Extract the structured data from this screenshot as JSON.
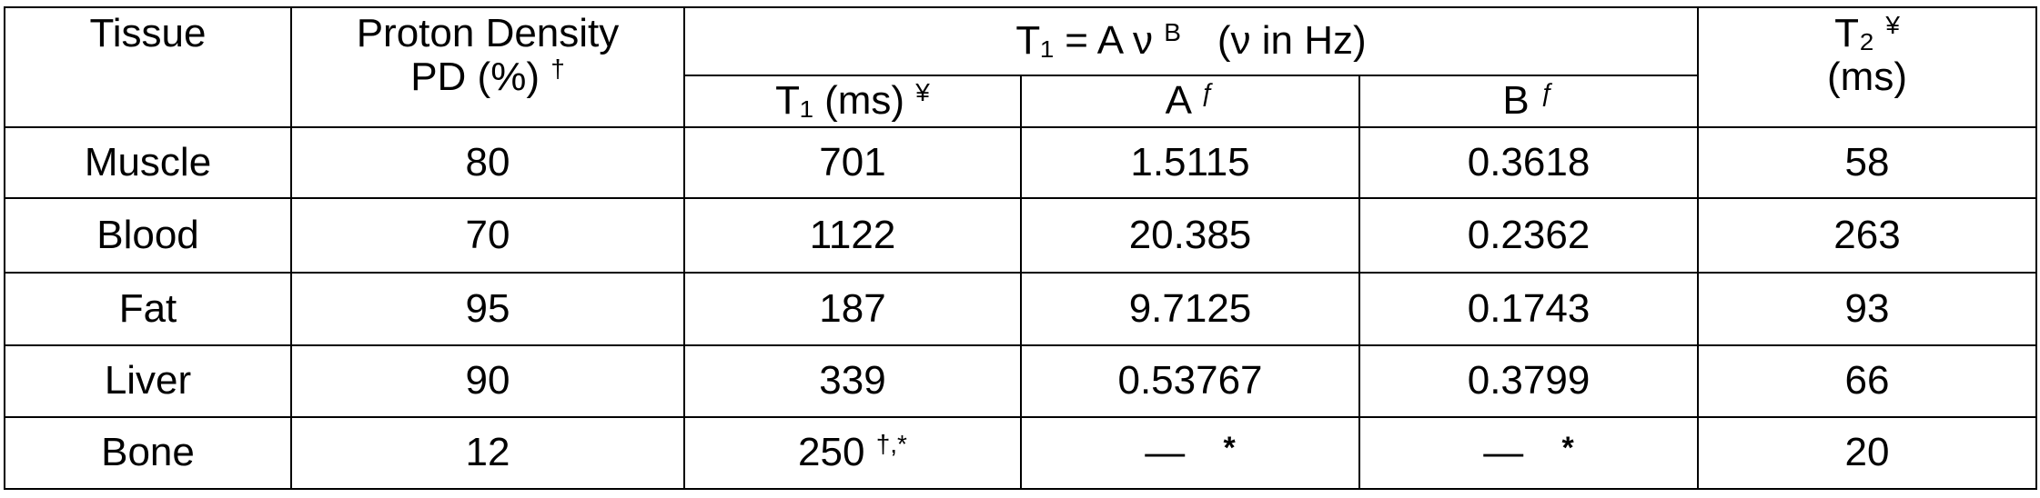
{
  "table": {
    "header": {
      "tissue": "Tissue",
      "pd": {
        "line1": "Proton Density",
        "line2": "PD (%)",
        "mark": "†"
      },
      "t1_group": {
        "text": "T₁ = A ν",
        "exp": "B",
        "unit": "(ν in Hz)"
      },
      "t1": {
        "text": "T₁ (ms)",
        "mark": "¥"
      },
      "a": {
        "text": "A",
        "mark": "ƒ"
      },
      "b": {
        "text": "B",
        "mark": "ƒ"
      },
      "t2": {
        "line1": "T₂",
        "mark": "¥",
        "line2": "(ms)"
      }
    },
    "rows": [
      [
        "Muscle",
        "80",
        "701",
        "1.5115",
        "0.3618",
        "58"
      ],
      [
        "Blood",
        "70",
        "1122",
        "20.385",
        "0.2362",
        "263"
      ],
      [
        "Fat",
        "95",
        "187",
        "9.7125",
        "0.1743",
        "93"
      ],
      [
        "Liver",
        "90",
        "339",
        "0.53767",
        "0.3799",
        "66"
      ],
      [
        "Bone",
        "12",
        "250",
        "—",
        "—",
        "20"
      ]
    ],
    "bone_marks": {
      "t1": "†,*",
      "a": "*",
      "b": "*"
    }
  }
}
